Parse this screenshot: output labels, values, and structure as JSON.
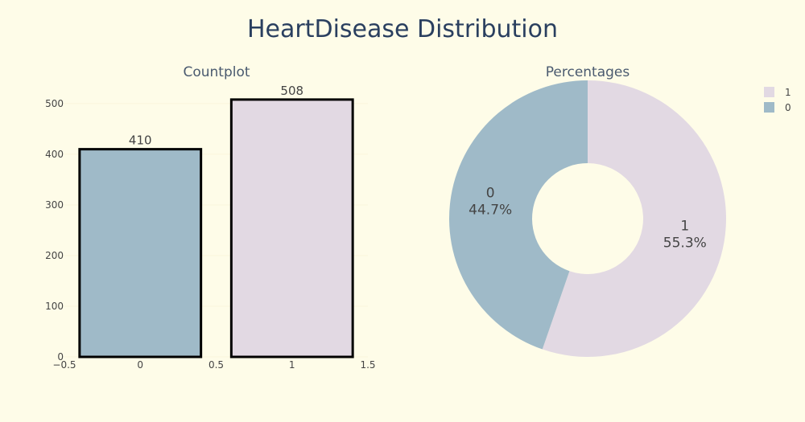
{
  "title": "HeartDisease Distribution",
  "colors": {
    "background": "#fefce8",
    "class_0": "#9fbac8",
    "class_1": "#e2d9e3",
    "outline": "#000000"
  },
  "chart_data": [
    {
      "type": "bar",
      "title": "Countplot",
      "categories": [
        "0",
        "1"
      ],
      "x": [
        0,
        1
      ],
      "values": [
        410,
        508
      ],
      "data_labels": [
        "410",
        "508"
      ],
      "xlim": [
        -0.5,
        1.5
      ],
      "ylim": [
        0,
        530
      ],
      "x_ticks": [
        "−0.5",
        "0",
        "0.5",
        "1",
        "1.5"
      ],
      "y_ticks": [
        "0",
        "100",
        "200",
        "300",
        "400",
        "500"
      ],
      "grid": true
    },
    {
      "type": "pie",
      "title": "Percentages",
      "hole": true,
      "labels": [
        "1",
        "0"
      ],
      "percents": [
        55.3,
        44.7
      ],
      "percent_labels": [
        "55.3%",
        "44.7%"
      ],
      "legend": [
        "1",
        "0"
      ],
      "legend_position": "top-right"
    }
  ]
}
